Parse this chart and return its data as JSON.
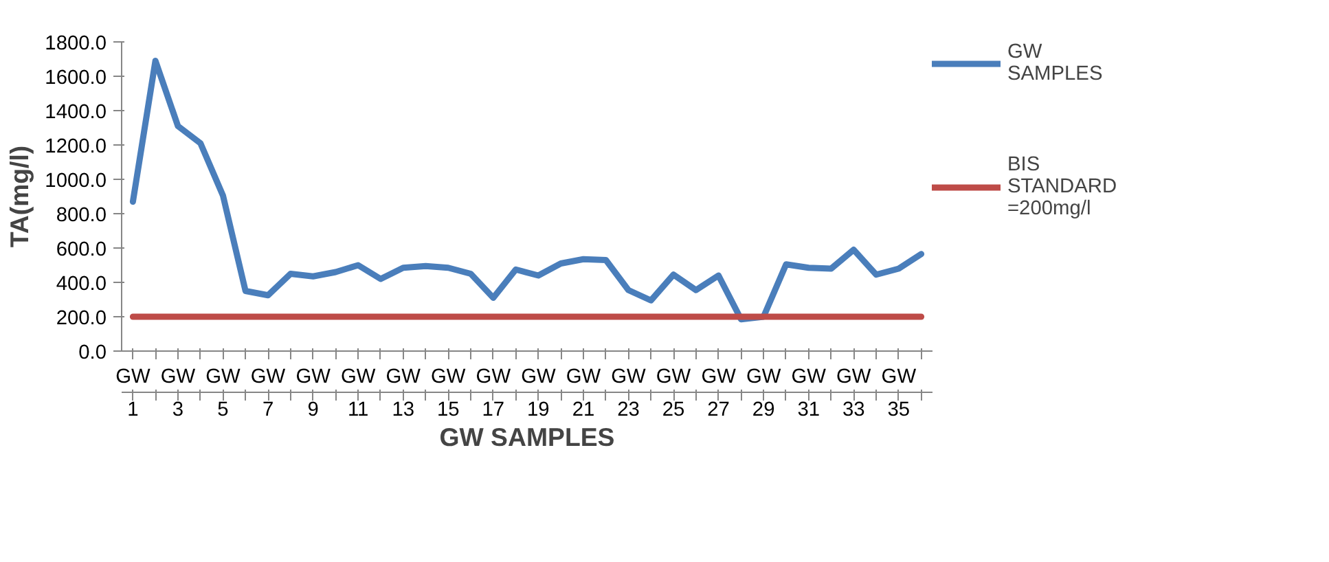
{
  "chart_data": {
    "type": "line",
    "xlabel": "GW SAMPLES",
    "ylabel": "TA(mg/l)",
    "categories": [
      "GW 1",
      null,
      "GW 3",
      null,
      "GW 5",
      null,
      "GW 7",
      null,
      "GW 9",
      null,
      "GW 11",
      null,
      "GW 13",
      null,
      "GW 15",
      null,
      "GW 17",
      null,
      "GW 19",
      null,
      "GW 21",
      null,
      "GW 23",
      null,
      "GW 25",
      null,
      "GW 27",
      null,
      "GW 29",
      null,
      "GW 31",
      null,
      "GW 33",
      null,
      "GW 35",
      null
    ],
    "series": [
      {
        "name": "GW SAMPLES",
        "color": "#4a7ebb",
        "values": [
          870,
          1690,
          1310,
          1210,
          905,
          350,
          325,
          450,
          435,
          460,
          500,
          420,
          485,
          495,
          485,
          450,
          310,
          475,
          440,
          510,
          535,
          530,
          355,
          295,
          445,
          355,
          440,
          185,
          200,
          505,
          485,
          480,
          590,
          445,
          480,
          565
        ]
      },
      {
        "name": "BIS STANDARD =200mg/l",
        "color": "#be4b48",
        "values": [
          200,
          200,
          200,
          200,
          200,
          200,
          200,
          200,
          200,
          200,
          200,
          200,
          200,
          200,
          200,
          200,
          200,
          200,
          200,
          200,
          200,
          200,
          200,
          200,
          200,
          200,
          200,
          200,
          200,
          200,
          200,
          200,
          200,
          200,
          200,
          200
        ]
      }
    ],
    "ylim": [
      0,
      1800
    ],
    "yticks": [
      {
        "value": 0,
        "label": "0.0"
      },
      {
        "value": 200,
        "label": "200.0"
      },
      {
        "value": 400,
        "label": "400.0"
      },
      {
        "value": 600,
        "label": "600.0"
      },
      {
        "value": 800,
        "label": "800.0"
      },
      {
        "value": 1000,
        "label": "1000.0"
      },
      {
        "value": 1200,
        "label": "1200.0"
      },
      {
        "value": 1400,
        "label": "1400.0"
      },
      {
        "value": 1600,
        "label": "1600.0"
      },
      {
        "value": 1800,
        "label": "1800.0"
      }
    ],
    "grid": false,
    "legend": "right",
    "marker": "none",
    "line_style": "solid"
  }
}
